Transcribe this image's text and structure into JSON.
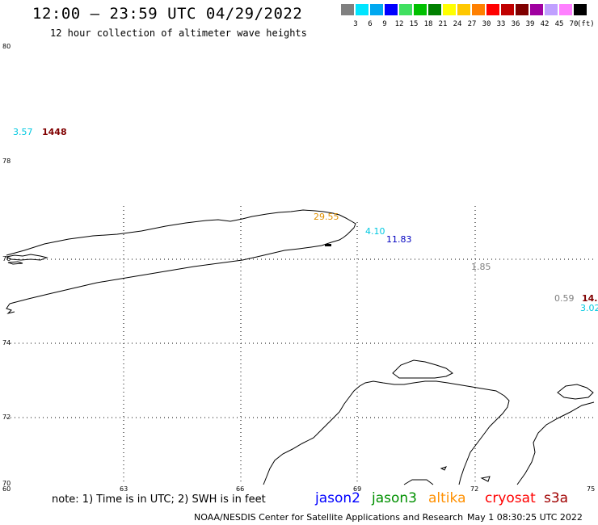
{
  "header": {
    "title": "12:00 — 23:59 UTC 04/29/2022",
    "subtitle": "12 hour collection of altimeter wave heights"
  },
  "legend": {
    "unit": "(ft)",
    "colors": [
      "#808080",
      "#00e5ff",
      "#00a8f0",
      "#0000ff",
      "#40e060",
      "#00c000",
      "#008000",
      "#ffff00",
      "#ffc800",
      "#ff8000",
      "#ff0000",
      "#c00000",
      "#800000",
      "#a000a0",
      "#c0a0ff",
      "#ff80ff",
      "#000000"
    ],
    "labels": [
      "3",
      "6",
      "9",
      "12",
      "15",
      "18",
      "21",
      "24",
      "27",
      "30",
      "33",
      "36",
      "39",
      "42",
      "45",
      "70"
    ]
  },
  "axes": {
    "lat_labels": [
      "80",
      "78",
      "76",
      "74",
      "72",
      "70"
    ],
    "lon_labels": [
      "60",
      "63",
      "66",
      "69",
      "72",
      "75"
    ]
  },
  "observations": [
    {
      "value": "3.57",
      "color": "#00c8e0"
    },
    {
      "value": "1448",
      "color": "#800000"
    },
    {
      "value": "29.55",
      "color": "#e09000"
    },
    {
      "value": "4.10",
      "color": "#00c8e0"
    },
    {
      "value": "11.83",
      "color": "#0000c0"
    },
    {
      "value": "1.85",
      "color": "#808080"
    },
    {
      "value": "0.59",
      "color": "#808080"
    },
    {
      "value": "14.",
      "color": "#800000"
    },
    {
      "value": "3.02",
      "color": "#00c8e0"
    }
  ],
  "footer": {
    "note": "note:  1) Time is in UTC;  2) SWH is in feet",
    "satellites": [
      {
        "name": "jason2",
        "color": "#0000ff"
      },
      {
        "name": "jason3",
        "color": "#009000"
      },
      {
        "name": "altika",
        "color": "#ff9000"
      },
      {
        "name": "cryosat",
        "color": "#ff0000"
      },
      {
        "name": "s3a",
        "color": "#a00000"
      }
    ],
    "credit": "NOAA/NESDIS Center for Satellite Applications and Research",
    "timestamp": "May  1 08:30:25 UTC 2022"
  }
}
